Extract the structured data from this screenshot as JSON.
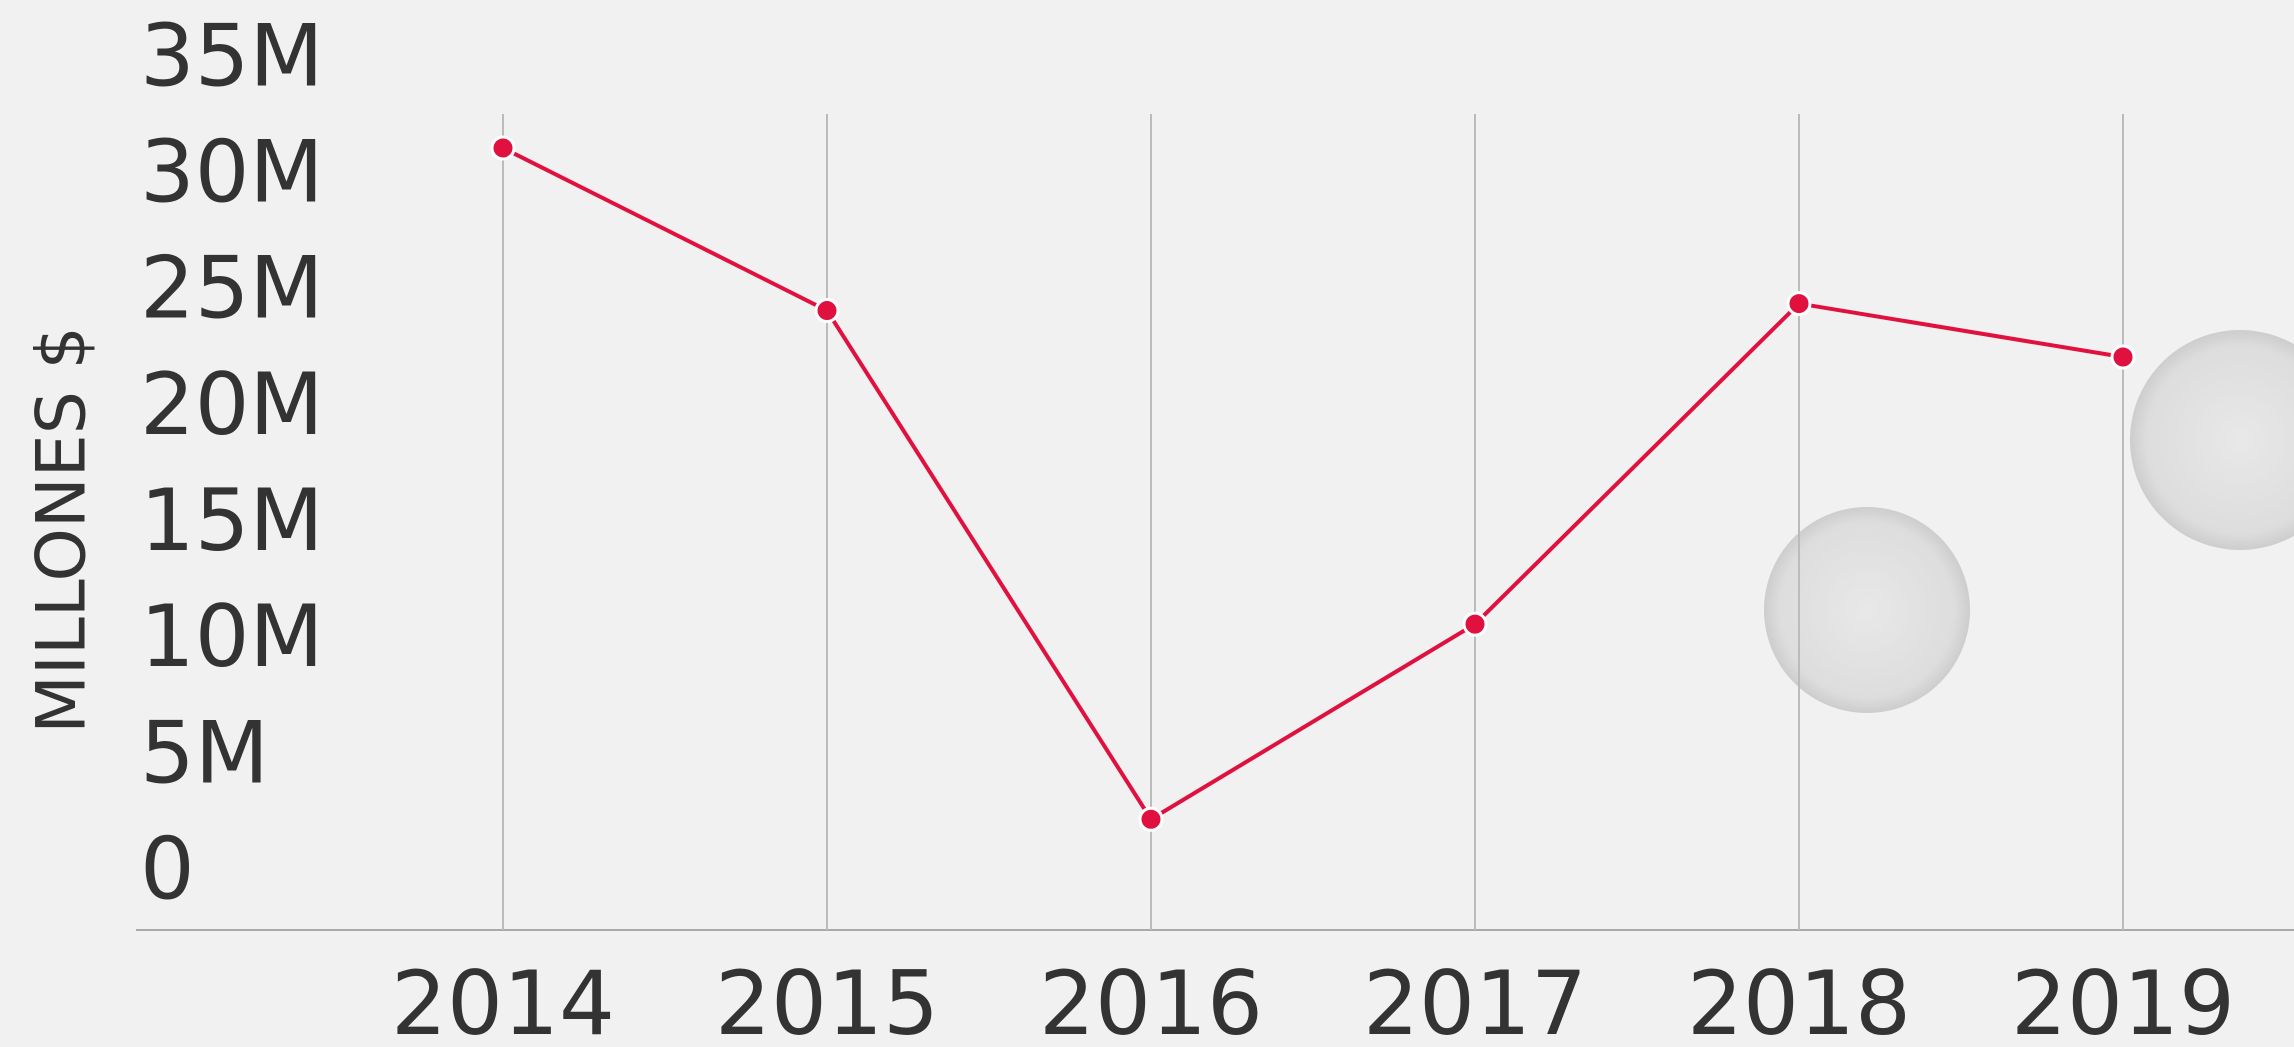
{
  "chart_data": {
    "type": "line",
    "y_label": "MILLONES $",
    "categories": [
      "2014",
      "2015",
      "2016",
      "2017",
      "2018",
      "2019"
    ],
    "values": [
      31.3,
      24.3,
      2.4,
      10.8,
      24.6,
      22.3
    ],
    "color": "#e0103f",
    "ylim": [
      0,
      35
    ],
    "yticks": [
      0,
      {
        "value": 5,
        "label": "5M"
      },
      {
        "value": 10,
        "label": "10M"
      },
      {
        "value": 15,
        "label": "15M"
      },
      {
        "value": 20,
        "label": "20M"
      },
      {
        "value": 25,
        "label": "25M"
      },
      {
        "value": 30,
        "label": "30M"
      },
      {
        "value": 35,
        "label": "35M"
      }
    ],
    "grid": "x"
  }
}
